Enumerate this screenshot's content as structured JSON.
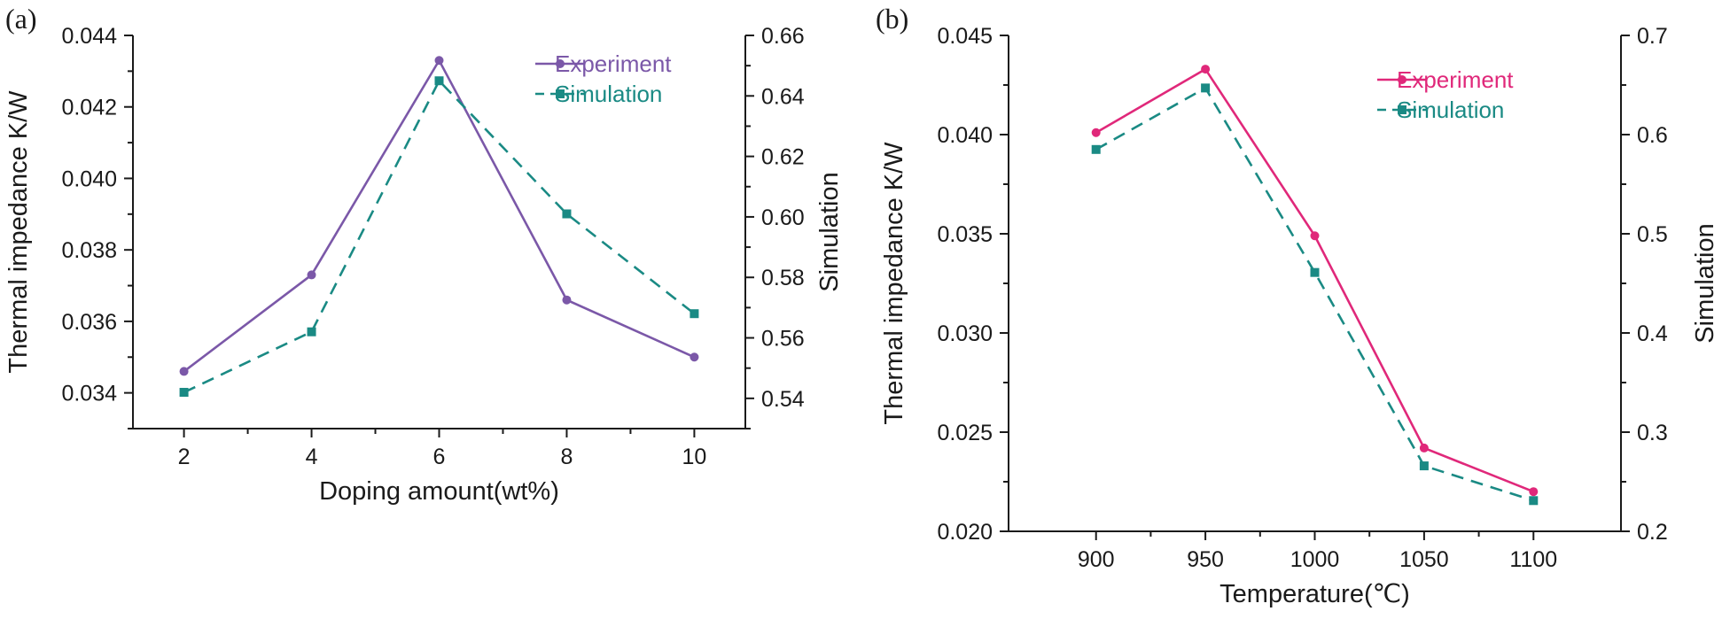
{
  "chart_data": [
    {
      "type": "line",
      "panel_label": "(a)",
      "xlabel": "Doping amount(wt%)",
      "ylabel": "Thermal impedance K/W",
      "y2label": "Simulation",
      "x": [
        2,
        4,
        6,
        8,
        10
      ],
      "xticks": [
        2,
        4,
        6,
        8,
        10
      ],
      "xlim": [
        1.2,
        10.8
      ],
      "ylim": [
        0.033,
        0.044
      ],
      "yticks": [
        "0.034",
        "0.036",
        "0.038",
        "0.040",
        "0.042",
        "0.044"
      ],
      "y2lim": [
        0.53,
        0.66
      ],
      "y2ticks": [
        "0.54",
        "0.56",
        "0.58",
        "0.60",
        "0.62",
        "0.64",
        "0.66"
      ],
      "legend_position": "top-right",
      "series": [
        {
          "name": "Experiment",
          "axis": "left",
          "color": "#7b58a8",
          "dash": "solid",
          "marker": "circle",
          "values": [
            0.0346,
            0.0373,
            0.0433,
            0.0366,
            0.035
          ]
        },
        {
          "name": "Simulation",
          "axis": "right",
          "color": "#1a8a84",
          "dash": "dashed",
          "marker": "square",
          "values": [
            0.542,
            0.562,
            0.645,
            0.601,
            0.568
          ]
        }
      ]
    },
    {
      "type": "line",
      "panel_label": "(b)",
      "xlabel": "Temperature(℃)",
      "ylabel": "Thermal impedance K/W",
      "y2label": "Simulation",
      "x": [
        900,
        950,
        1000,
        1050,
        1100
      ],
      "xticks": [
        900,
        950,
        1000,
        1050,
        1100
      ],
      "xlim": [
        860,
        1140
      ],
      "ylim": [
        0.02,
        0.045
      ],
      "yticks": [
        "0.020",
        "0.025",
        "0.030",
        "0.035",
        "0.040",
        "0.045"
      ],
      "y2lim": [
        0.2,
        0.7
      ],
      "y2ticks": [
        "0.2",
        "0.3",
        "0.4",
        "0.5",
        "0.6",
        "0.7"
      ],
      "legend_position": "top-right",
      "series": [
        {
          "name": "Experiment",
          "axis": "left",
          "color": "#e0287a",
          "dash": "solid",
          "marker": "circle",
          "values": [
            0.0401,
            0.0433,
            0.0349,
            0.0242,
            0.022
          ]
        },
        {
          "name": "Simulation",
          "axis": "right",
          "color": "#1a8a84",
          "dash": "dashed",
          "marker": "square",
          "values": [
            0.585,
            0.647,
            0.461,
            0.266,
            0.231
          ]
        }
      ]
    }
  ]
}
